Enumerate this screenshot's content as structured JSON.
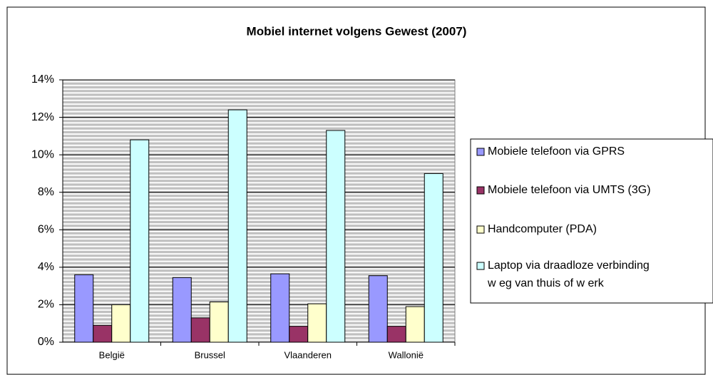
{
  "chart_data": {
    "type": "bar",
    "title": "Mobiel internet volgens Gewest (2007)",
    "categories": [
      "België",
      "Brussel",
      "Vlaanderen",
      "Wallonië"
    ],
    "series": [
      {
        "name": "Mobiele telefoon via GPRS",
        "color": "#9999ff",
        "values": [
          3.6,
          3.45,
          3.65,
          3.55
        ]
      },
      {
        "name": "Mobiele telefoon via UMTS (3G)",
        "color": "#993366",
        "values": [
          0.9,
          1.3,
          0.85,
          0.85
        ]
      },
      {
        "name": "Handcomputer (PDA)",
        "color": "#ffffcc",
        "values": [
          2.0,
          2.15,
          2.05,
          1.9
        ]
      },
      {
        "name": "Laptop via draadloze verbinding\nw eg van thuis of w erk",
        "color": "#ccffff",
        "values": [
          10.8,
          12.4,
          11.3,
          9.0
        ]
      }
    ],
    "ylim": [
      0,
      14
    ],
    "yticks": [
      {
        "value": 0,
        "label": "0%"
      },
      {
        "value": 2,
        "label": "2%"
      },
      {
        "value": 4,
        "label": "4%"
      },
      {
        "value": 6,
        "label": "6%"
      },
      {
        "value": 8,
        "label": "8%"
      },
      {
        "value": 10,
        "label": "10%"
      },
      {
        "value": 12,
        "label": "12%"
      },
      {
        "value": 14,
        "label": "14%"
      }
    ],
    "grid": true,
    "legend": "right"
  }
}
